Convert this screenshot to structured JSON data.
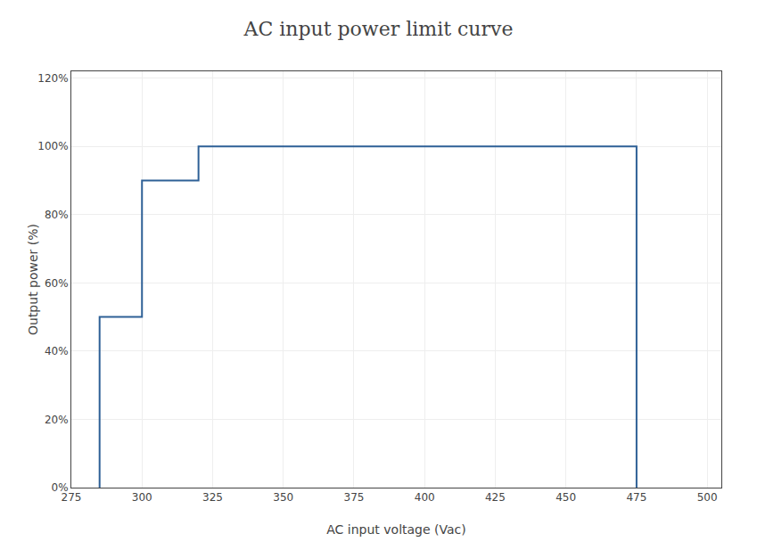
{
  "chart_data": {
    "type": "line",
    "title": "AC input power limit curve",
    "xlabel": "AC input voltage (Vac)",
    "ylabel": "Output power (%)",
    "x": [
      285,
      285,
      300,
      300,
      320,
      320,
      475,
      475
    ],
    "values": [
      0,
      50,
      50,
      90,
      90,
      100,
      100,
      0
    ],
    "color": "#2e6096",
    "xlim": [
      275,
      505
    ],
    "ylim": [
      0,
      122
    ],
    "xticks": [
      275,
      300,
      325,
      350,
      375,
      400,
      425,
      450,
      475,
      500
    ],
    "yticks": [
      {
        "value": 0,
        "label": "0%"
      },
      {
        "value": 20,
        "label": "20%"
      },
      {
        "value": 40,
        "label": "40%"
      },
      {
        "value": 60,
        "label": "60%"
      },
      {
        "value": 80,
        "label": "80%"
      },
      {
        "value": 100,
        "label": "100%"
      },
      {
        "value": 120,
        "label": "120%"
      }
    ],
    "grid": true
  }
}
